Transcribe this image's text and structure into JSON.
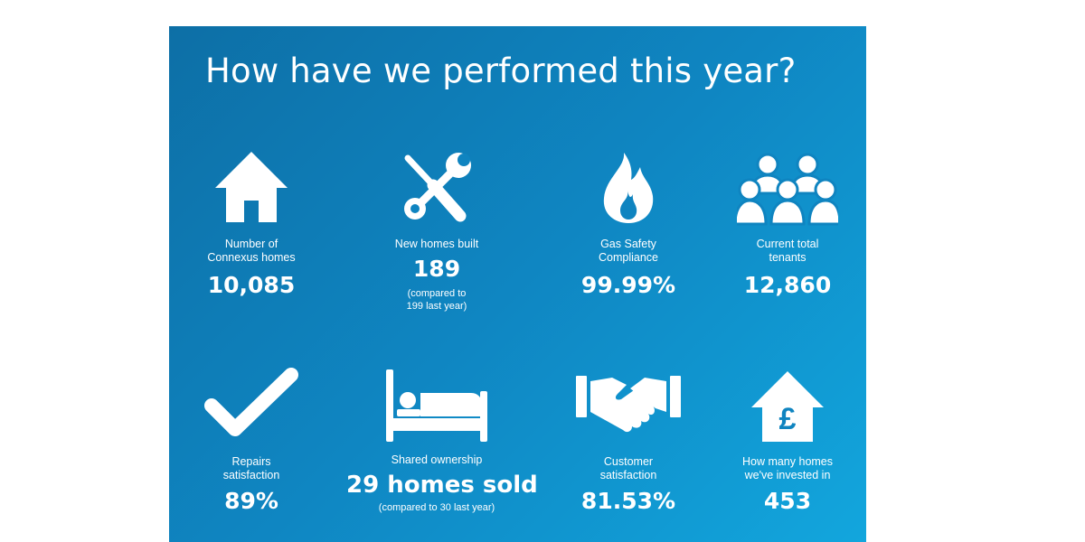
{
  "title": "How have we performed this year?",
  "stats": [
    {
      "icon": "house-icon",
      "label_line1": "Number of",
      "label_line2": "Connexus homes",
      "value": "10,085"
    },
    {
      "icon": "tools-icon",
      "label_line1": "New homes built",
      "value": "189",
      "note_line1": "(compared to",
      "note_line2": "199 last year)"
    },
    {
      "icon": "flame-icon",
      "label_line1": "Gas Safety",
      "label_line2": "Compliance",
      "value": "99.99%"
    },
    {
      "icon": "people-icon",
      "label_line1": "Current total",
      "label_line2": "tenants",
      "value": "12,860"
    },
    {
      "icon": "checkmark-icon",
      "label_line1": "Repairs",
      "label_line2": "satisfaction",
      "value": "89%"
    },
    {
      "icon": "bed-icon",
      "label_line1": "Shared ownership",
      "value": "29 homes sold",
      "note_line1": "(compared to 30 last year)"
    },
    {
      "icon": "handshake-icon",
      "label_line1": "Customer",
      "label_line2": "satisfaction",
      "value": "81.53%"
    },
    {
      "icon": "pound-house-icon",
      "label_line1": "How many homes",
      "label_line2": "we've invested in",
      "value": "453"
    }
  ],
  "pound_symbol": "£",
  "colors": {
    "panel_start": "#0d6fa6",
    "panel_end": "#12a6dd",
    "text": "#ffffff",
    "page_background": "#ffffff"
  }
}
